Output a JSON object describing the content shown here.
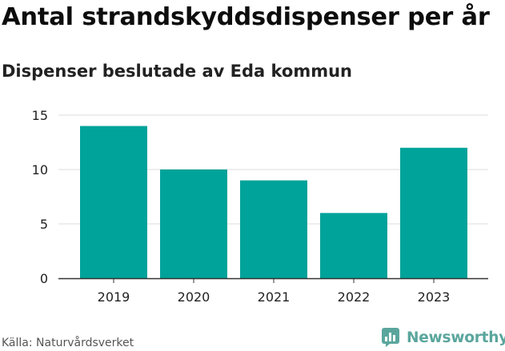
{
  "title": "Antal strandskyddsdispenser per år",
  "subtitle": "Dispenser beslutade av Eda kommun",
  "source": "Källa: Naturvårdsverket",
  "brand": {
    "name": "Newsworthy",
    "color": "#5aa69d"
  },
  "colors": {
    "bar": "#00a39a",
    "grid": "#dcdcdc",
    "axis": "#333333",
    "tick_text": "#222222"
  },
  "chart_data": {
    "type": "bar",
    "title": "Antal strandskyddsdispenser per år",
    "subtitle": "Dispenser beslutade av Eda kommun",
    "categories": [
      "2019",
      "2020",
      "2021",
      "2022",
      "2023"
    ],
    "values": [
      14,
      10,
      9,
      6,
      12
    ],
    "xlabel": "",
    "ylabel": "",
    "ylim": [
      0,
      15
    ],
    "yticks": [
      "0",
      "5",
      "10",
      "15"
    ],
    "grid": true,
    "legend": "none"
  }
}
